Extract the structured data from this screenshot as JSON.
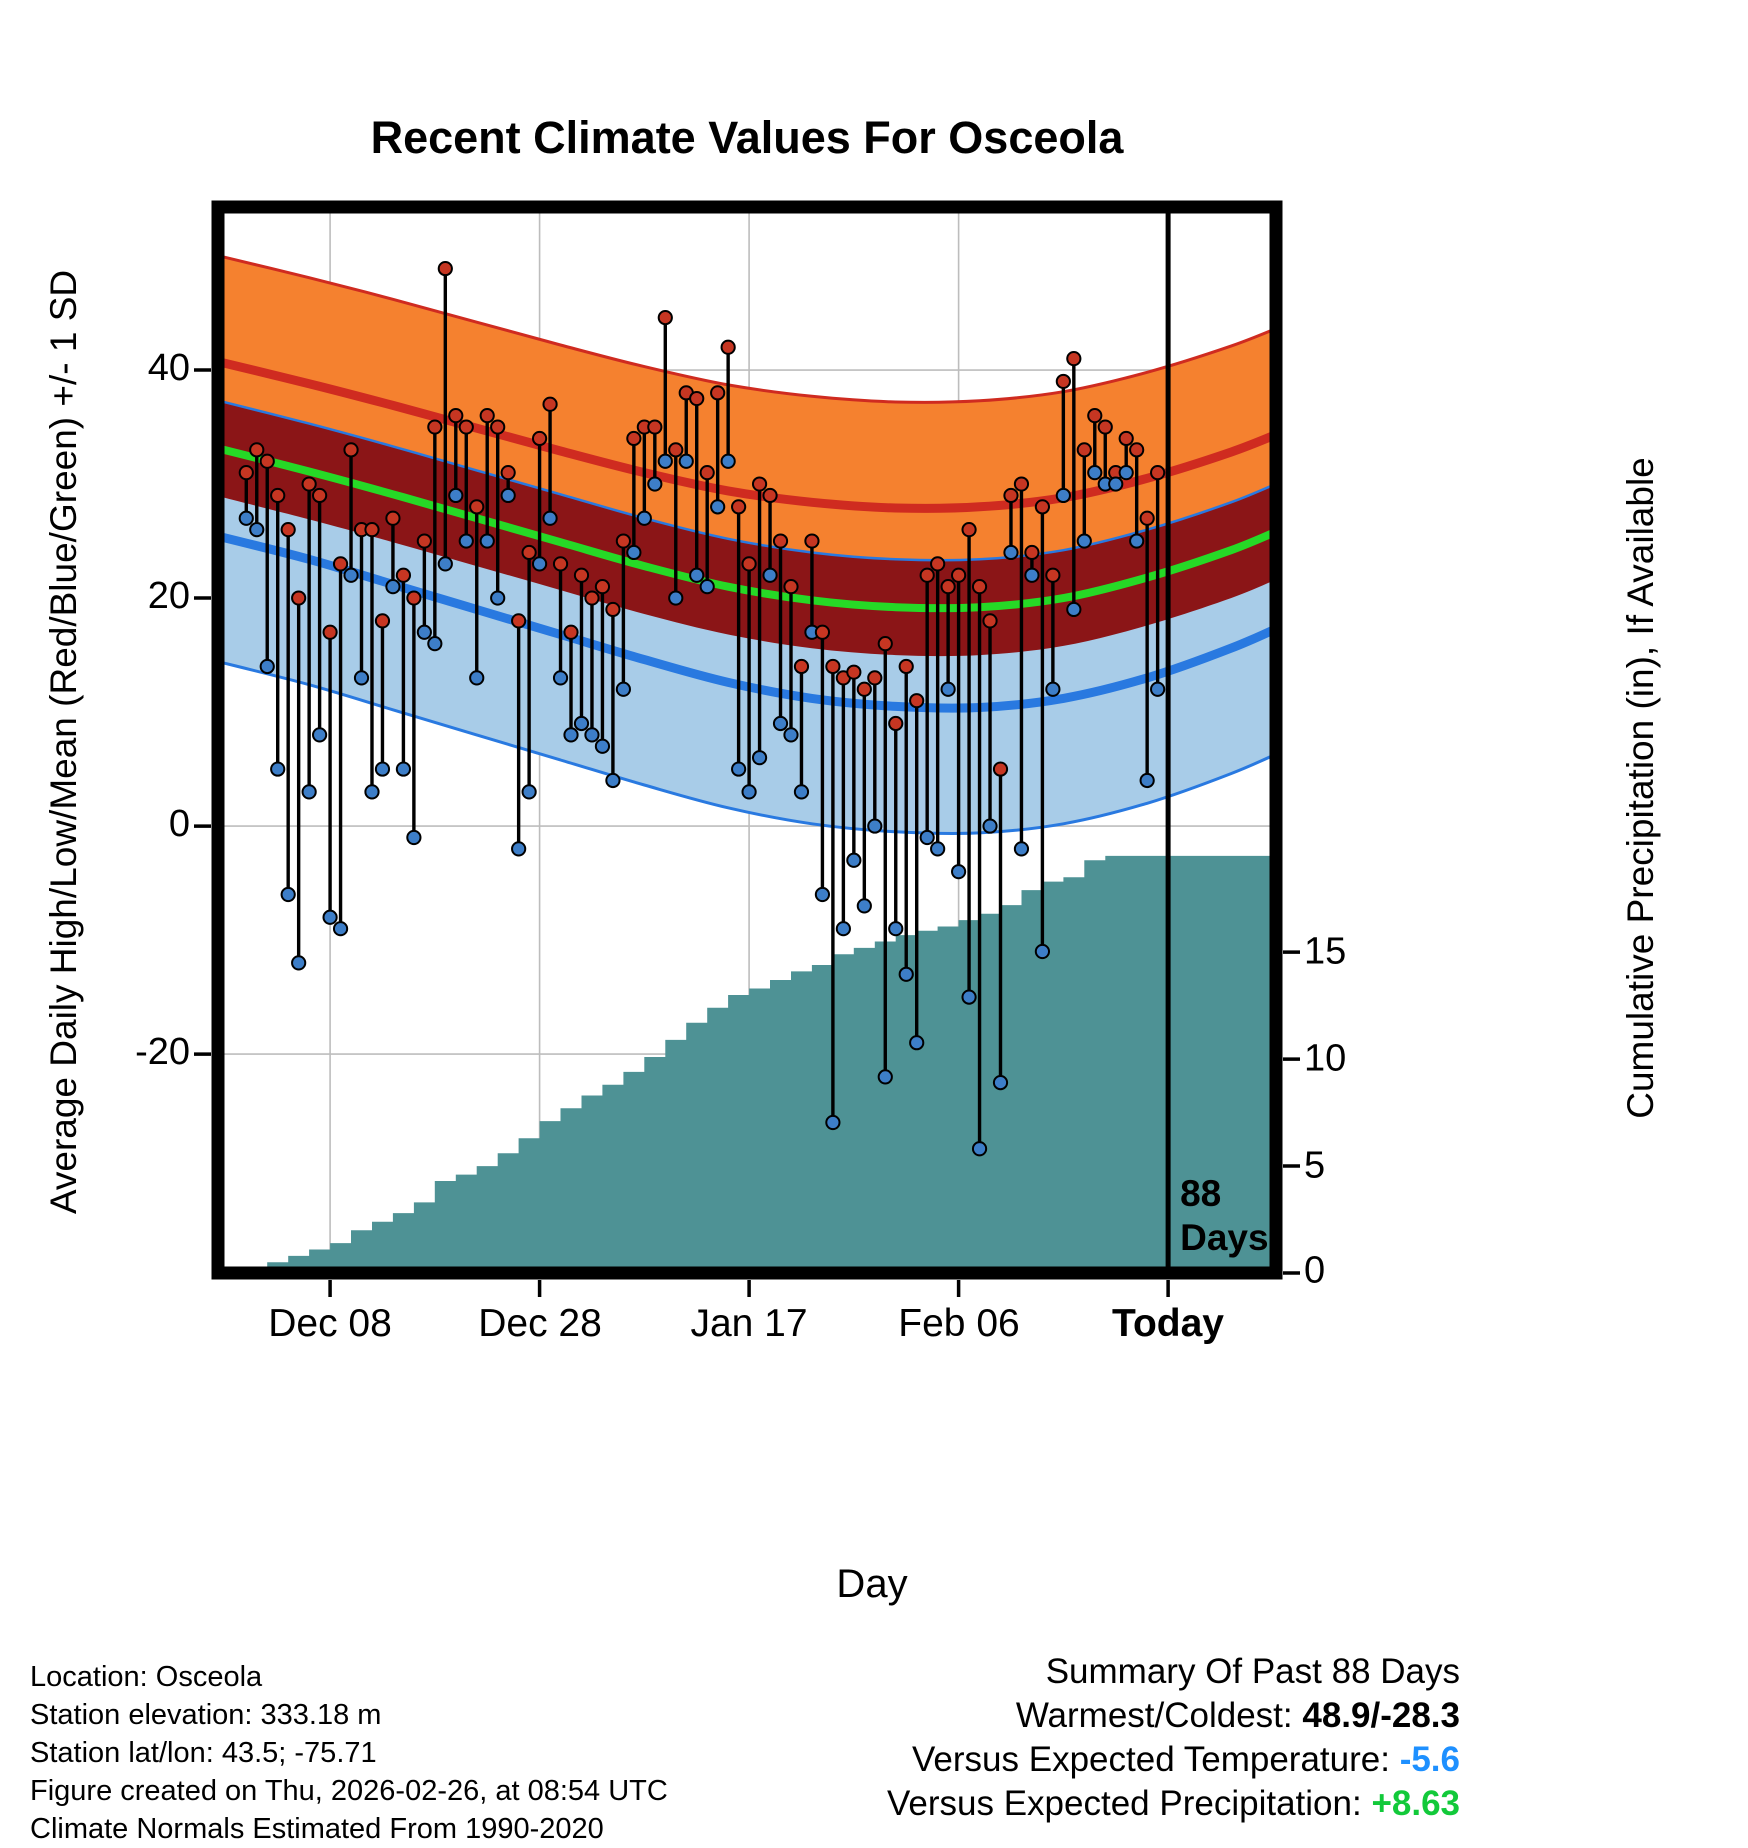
{
  "title": "Recent Climate Values For Osceola",
  "axes": {
    "y_left_label": "Average Daily High/Low/Mean (Red/Blue/Green) +/- 1 SD",
    "y_right_label": "Cumulative Precipitation (in), If Available",
    "x_label": "Day",
    "y_left_ticks": [
      "40",
      "20",
      "0",
      "-20"
    ],
    "y_right_ticks": [
      "15",
      "10",
      "5",
      "0"
    ],
    "x_ticks": [
      "Dec 08",
      "Dec 28",
      "Jan 17",
      "Feb 06",
      "Today"
    ]
  },
  "annotations": {
    "days_line1": "88",
    "days_line2": "Days"
  },
  "chart_data": {
    "type": "line",
    "title": "Recent Climate Values For Osceola",
    "xlabel": "Day",
    "ylabel_left": "Average Daily High/Low/Mean (Red/Blue/Green) +/- 1 SD",
    "ylabel_right": "Cumulative Precipitation (in), If Available",
    "day_domain": [
      -2.7,
      98.3
    ],
    "temp_domain": [
      54.3,
      -39.2
    ],
    "temp_axis": {
      "ticks": [
        40,
        20,
        0,
        -20
      ]
    },
    "precip_axis": {
      "ticks": [
        15,
        10,
        5,
        0
      ]
    },
    "precip_scale": {
      "temp_at_zero": -39.2,
      "degF_per_inch": 1.876
    },
    "x_tick_days": [
      8,
      28,
      48,
      68,
      88
    ],
    "today_day": 88,
    "normals": {
      "days": [
        -3,
        6,
        14,
        22,
        30,
        38,
        46,
        54,
        62,
        70,
        78,
        86,
        94,
        99
      ],
      "high_mean": [
        40.8,
        38.8,
        36.9,
        34.9,
        32.9,
        31.0,
        29.4,
        28.4,
        27.9,
        28.0,
        28.8,
        30.5,
        32.8,
        34.6
      ],
      "low_mean": [
        25.5,
        23.4,
        21.2,
        19.0,
        16.8,
        14.6,
        12.6,
        11.2,
        10.5,
        10.4,
        11.2,
        13.0,
        15.6,
        17.6
      ],
      "mean": [
        33.2,
        31.1,
        29.1,
        27.0,
        24.9,
        22.8,
        21.0,
        19.8,
        19.2,
        19.2,
        20.0,
        21.8,
        24.2,
        26.1
      ],
      "high_sd": 9.3,
      "low_sd": 11.0,
      "mean_sd": 4.2
    },
    "daily": {
      "first_day_index": 0,
      "high": [
        31,
        33,
        32,
        29,
        26,
        20,
        30,
        29,
        17,
        23,
        33,
        26,
        26,
        18,
        27,
        22,
        20,
        25,
        35,
        48.9,
        36,
        35,
        28,
        36,
        35,
        31,
        18,
        24,
        34,
        37,
        23,
        17,
        22,
        20,
        21,
        19,
        25,
        34,
        35,
        35,
        44.6,
        33,
        38,
        37.5,
        31,
        38,
        42,
        28,
        23,
        30,
        29,
        25,
        21,
        14,
        25,
        17,
        14,
        13,
        13.5,
        12,
        13,
        16,
        9,
        14,
        11,
        22,
        23,
        21,
        22,
        26,
        21,
        18,
        5,
        29,
        30,
        24,
        28,
        22,
        39,
        41,
        33,
        36,
        35,
        31,
        34,
        33,
        27,
        31
      ],
      "low": [
        27,
        26,
        14,
        5,
        -6,
        -12,
        3,
        8,
        -8,
        -9,
        22,
        13,
        3,
        5,
        21,
        5,
        -1,
        17,
        16,
        23,
        29,
        25,
        13,
        25,
        20,
        29,
        -2,
        3,
        23,
        27,
        13,
        8,
        9,
        8,
        7,
        4,
        12,
        24,
        27,
        30,
        32,
        20,
        32,
        22,
        21,
        28,
        32,
        5,
        3,
        6,
        22,
        9,
        8,
        3,
        17,
        -6,
        -26,
        -9,
        -3,
        -7,
        0,
        -22,
        -9,
        -13,
        -19,
        -1,
        -2,
        12,
        -4,
        -15,
        -28.3,
        0,
        -22.5,
        24,
        -2,
        22,
        -11,
        12,
        29,
        19,
        25,
        31,
        30,
        30,
        31,
        25,
        4,
        12
      ]
    },
    "precipitation": {
      "days": [
        0,
        2,
        4,
        6,
        8,
        10,
        12,
        14,
        16,
        18,
        20,
        22,
        24,
        26,
        28,
        30,
        32,
        34,
        36,
        38,
        40,
        42,
        44,
        46,
        48,
        50,
        52,
        54,
        56,
        58,
        60,
        62,
        64,
        66,
        68,
        70,
        72,
        74,
        76,
        78,
        80,
        82,
        84,
        86,
        88,
        98
      ],
      "cumulative_in": [
        0.2,
        0.5,
        0.8,
        1.1,
        1.4,
        2.0,
        2.4,
        2.8,
        3.3,
        4.3,
        4.6,
        5.0,
        5.6,
        6.3,
        7.1,
        7.7,
        8.3,
        8.8,
        9.4,
        10.1,
        10.9,
        11.7,
        12.4,
        13.0,
        13.3,
        13.7,
        14.1,
        14.4,
        14.9,
        15.2,
        15.5,
        15.8,
        16.0,
        16.2,
        16.5,
        16.8,
        17.2,
        17.9,
        18.3,
        18.5,
        19.3,
        19.5,
        19.5,
        19.5,
        19.5,
        19.5
      ]
    }
  },
  "footer_left": {
    "lines": [
      "Location: Osceola",
      "Station elevation: 333.18 m",
      "Station lat/lon: 43.5; -75.71",
      "Figure created on Thu, 2026-02-26, at 08:54 UTC",
      "Climate Normals Estimated From 1990-2020"
    ]
  },
  "summary": {
    "title": "Summary Of Past 88 Days",
    "rows": [
      {
        "label": "Warmest/Coldest:",
        "value": "48.9/-28.3",
        "value_color": "#000000"
      },
      {
        "label": "Versus Expected Temperature:",
        "value": "-5.6",
        "value_color": "#1e90ff"
      },
      {
        "label": "Versus Expected Precipitation:",
        "value": "+8.63",
        "value_color": "#12c93a"
      }
    ]
  },
  "colors": {
    "orange_band": "#f5812f",
    "red_line": "#cf2b20",
    "dark_red_band": "#8b1517",
    "green_line": "#26d926",
    "light_blue_band": "#a8cce8",
    "blue_line": "#2979e0",
    "teal_precip": "#4e9295",
    "high_dot": "#c63622",
    "low_dot": "#3d7ec8",
    "grid": "#bdbdbd",
    "axis": "#000000"
  }
}
